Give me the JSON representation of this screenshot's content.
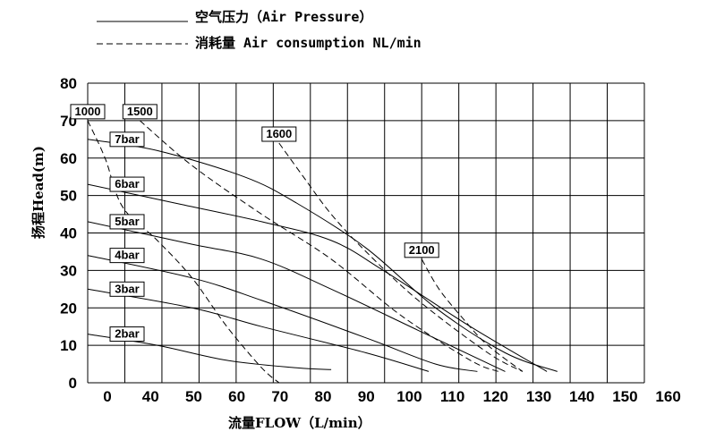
{
  "legend": [
    {
      "style": "solid",
      "label": "空气压力（Air Pressure）"
    },
    {
      "style": "dashed",
      "label": "消耗量 Air consumption NL/min"
    }
  ],
  "chart_data": {
    "type": "line",
    "xlabel": "流量FLOW（L/min）",
    "ylabel": "扬程Head(m)",
    "xlim": [
      0,
      160
    ],
    "ylim": [
      0,
      80
    ],
    "x_ticks": [
      0,
      40,
      50,
      60,
      70,
      80,
      90,
      100,
      110,
      120,
      130,
      140,
      150,
      160
    ],
    "y_ticks": [
      0,
      10,
      20,
      30,
      40,
      50,
      60,
      70,
      80
    ],
    "grid": true,
    "series": [
      {
        "name": "7bar",
        "style": "solid",
        "points": [
          [
            0,
            65
          ],
          [
            20,
            62
          ],
          [
            45,
            55
          ],
          [
            60,
            48
          ],
          [
            80,
            36
          ],
          [
            100,
            20
          ],
          [
            120,
            8
          ],
          [
            135,
            3
          ]
        ]
      },
      {
        "name": "6bar",
        "style": "solid",
        "points": [
          [
            0,
            53
          ],
          [
            25,
            48
          ],
          [
            50,
            43
          ],
          [
            70,
            38
          ],
          [
            85,
            30
          ],
          [
            110,
            15
          ],
          [
            132,
            3
          ]
        ]
      },
      {
        "name": "5bar",
        "style": "solid",
        "points": [
          [
            0,
            43
          ],
          [
            30,
            37
          ],
          [
            50,
            33
          ],
          [
            70,
            25
          ],
          [
            95,
            14
          ],
          [
            120,
            3
          ]
        ]
      },
      {
        "name": "4bar",
        "style": "solid",
        "points": [
          [
            0,
            34
          ],
          [
            30,
            28
          ],
          [
            50,
            22
          ],
          [
            80,
            12
          ],
          [
            100,
            5
          ],
          [
            112,
            3
          ]
        ]
      },
      {
        "name": "3bar",
        "style": "solid",
        "points": [
          [
            0,
            25
          ],
          [
            30,
            20
          ],
          [
            50,
            15
          ],
          [
            80,
            8
          ],
          [
            98,
            3
          ]
        ]
      },
      {
        "name": "2bar",
        "style": "solid",
        "points": [
          [
            0,
            13
          ],
          [
            20,
            10
          ],
          [
            40,
            6
          ],
          [
            60,
            4
          ],
          [
            70,
            3.5
          ]
        ]
      },
      {
        "name": "1000",
        "style": "dashed",
        "points": [
          [
            0,
            70
          ],
          [
            5,
            60
          ],
          [
            10,
            47
          ],
          [
            20,
            38
          ],
          [
            30,
            28
          ],
          [
            40,
            15
          ],
          [
            50,
            4
          ],
          [
            55,
            0
          ]
        ]
      },
      {
        "name": "1500",
        "style": "dashed",
        "points": [
          [
            15,
            70
          ],
          [
            30,
            58
          ],
          [
            50,
            45
          ],
          [
            70,
            33
          ],
          [
            90,
            18
          ],
          [
            110,
            6
          ],
          [
            118,
            3
          ]
        ]
      },
      {
        "name": "1600",
        "style": "dashed",
        "points": [
          [
            55,
            64
          ],
          [
            62,
            55
          ],
          [
            70,
            45
          ],
          [
            80,
            35
          ],
          [
            95,
            22
          ],
          [
            115,
            8
          ],
          [
            125,
            3
          ]
        ]
      },
      {
        "name": "2100",
        "style": "dashed",
        "points": [
          [
            96,
            33
          ],
          [
            101,
            25
          ],
          [
            108,
            17
          ],
          [
            115,
            10
          ],
          [
            125,
            3
          ]
        ]
      }
    ]
  }
}
